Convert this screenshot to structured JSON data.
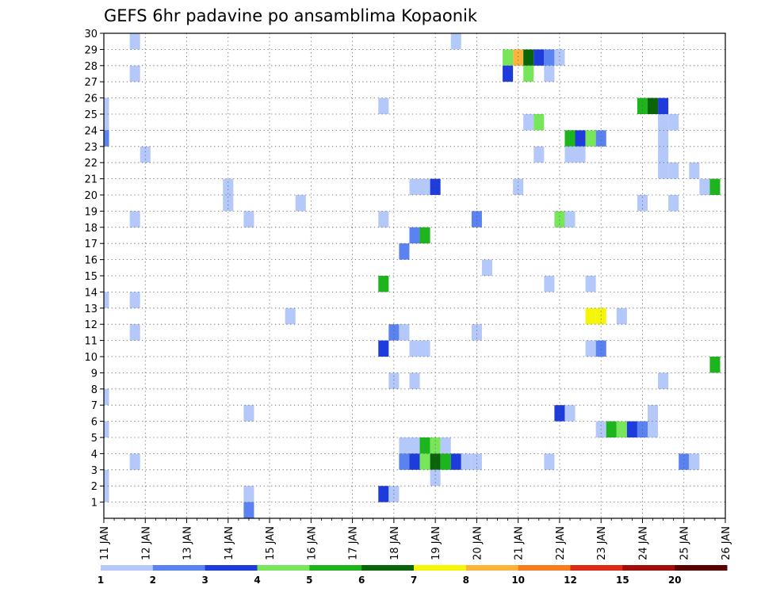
{
  "chart_data": {
    "type": "heatmap",
    "title": "GEFS 6hr padavine po ansamblima Kopaonik",
    "xlabel": "",
    "ylabel": "",
    "grid": true,
    "x_tick_labels": [
      "11 JAN",
      "12 JAN",
      "13 JAN",
      "14 JAN",
      "15 JAN",
      "16 JAN",
      "17 JAN",
      "18 JAN",
      "19 JAN",
      "20 JAN",
      "21 JAN",
      "22 JAN",
      "23 JAN",
      "24 JAN",
      "25 JAN",
      "26 JAN"
    ],
    "x_range_days": [
      11,
      26
    ],
    "y_tick_labels": [
      "1",
      "2",
      "3",
      "4",
      "5",
      "6",
      "7",
      "8",
      "9",
      "10",
      "11",
      "12",
      "13",
      "14",
      "15",
      "16",
      "17",
      "18",
      "19",
      "20",
      "21",
      "22",
      "23",
      "24",
      "25",
      "26",
      "27",
      "28",
      "29",
      "30"
    ],
    "y_range_members": [
      0,
      30
    ],
    "colorbar": {
      "labels": [
        "1",
        "2",
        "3",
        "4",
        "5",
        "6",
        "7",
        "8",
        "10",
        "12",
        "15",
        "20"
      ],
      "colors": [
        "#b4c8fa",
        "#5a82f0",
        "#1e3cdc",
        "#78e65a",
        "#1eb41e",
        "#0a640a",
        "#f5f50a",
        "#fab43c",
        "#f57d1e",
        "#dc2d14",
        "#a00f0a",
        "#5a0000"
      ]
    },
    "cell_value_unit": "color class index (0-11), 6-hour steps",
    "cells": [
      {
        "day": 11,
        "h": 0,
        "m": 25,
        "c": 0
      },
      {
        "day": 11,
        "h": 0,
        "m": 24,
        "c": 0
      },
      {
        "day": 11,
        "h": 0,
        "m": 23,
        "c": 1
      },
      {
        "day": 11,
        "h": 0,
        "m": 13,
        "c": 0
      },
      {
        "day": 11,
        "h": 0,
        "m": 7,
        "c": 0
      },
      {
        "day": 11,
        "h": 0,
        "m": 5,
        "c": 0
      },
      {
        "day": 11,
        "h": 0,
        "m": 2,
        "c": 0
      },
      {
        "day": 11,
        "h": 0,
        "m": 1,
        "c": 0
      },
      {
        "day": 11,
        "h": 18,
        "m": 29,
        "c": 0
      },
      {
        "day": 11,
        "h": 18,
        "m": 27,
        "c": 0
      },
      {
        "day": 11,
        "h": 18,
        "m": 18,
        "c": 0
      },
      {
        "day": 11,
        "h": 18,
        "m": 13,
        "c": 0
      },
      {
        "day": 11,
        "h": 18,
        "m": 11,
        "c": 0
      },
      {
        "day": 11,
        "h": 18,
        "m": 3,
        "c": 0
      },
      {
        "day": 12,
        "h": 0,
        "m": 22,
        "c": 0
      },
      {
        "day": 14,
        "h": 0,
        "m": 20,
        "c": 0
      },
      {
        "day": 14,
        "h": 0,
        "m": 19,
        "c": 0
      },
      {
        "day": 14,
        "h": 12,
        "m": 6,
        "c": 0
      },
      {
        "day": 14,
        "h": 12,
        "m": 1,
        "c": 0
      },
      {
        "day": 14,
        "h": 12,
        "m": 0,
        "c": 1
      },
      {
        "day": 14,
        "h": 12,
        "m": 18,
        "c": 0
      },
      {
        "day": 15,
        "h": 12,
        "m": 12,
        "c": 0
      },
      {
        "day": 15,
        "h": 18,
        "m": 19,
        "c": 0
      },
      {
        "day": 17,
        "h": 18,
        "m": 25,
        "c": 0
      },
      {
        "day": 17,
        "h": 18,
        "m": 18,
        "c": 0
      },
      {
        "day": 17,
        "h": 18,
        "m": 14,
        "c": 4
      },
      {
        "day": 17,
        "h": 18,
        "m": 10,
        "c": 2
      },
      {
        "day": 17,
        "h": 18,
        "m": 1,
        "c": 2
      },
      {
        "day": 18,
        "h": 0,
        "m": 11,
        "c": 1
      },
      {
        "day": 18,
        "h": 0,
        "m": 8,
        "c": 0
      },
      {
        "day": 18,
        "h": 0,
        "m": 1,
        "c": 0
      },
      {
        "day": 18,
        "h": 6,
        "m": 16,
        "c": 1
      },
      {
        "day": 18,
        "h": 6,
        "m": 11,
        "c": 0
      },
      {
        "day": 18,
        "h": 6,
        "m": 4,
        "c": 0
      },
      {
        "day": 18,
        "h": 6,
        "m": 3,
        "c": 1
      },
      {
        "day": 18,
        "h": 12,
        "m": 20,
        "c": 0
      },
      {
        "day": 18,
        "h": 12,
        "m": 17,
        "c": 1
      },
      {
        "day": 18,
        "h": 12,
        "m": 10,
        "c": 0
      },
      {
        "day": 18,
        "h": 12,
        "m": 8,
        "c": 0
      },
      {
        "day": 18,
        "h": 12,
        "m": 4,
        "c": 0
      },
      {
        "day": 18,
        "h": 12,
        "m": 3,
        "c": 2
      },
      {
        "day": 18,
        "h": 18,
        "m": 20,
        "c": 0
      },
      {
        "day": 18,
        "h": 18,
        "m": 17,
        "c": 4
      },
      {
        "day": 18,
        "h": 18,
        "m": 10,
        "c": 0
      },
      {
        "day": 18,
        "h": 18,
        "m": 4,
        "c": 4
      },
      {
        "day": 18,
        "h": 18,
        "m": 3,
        "c": 3
      },
      {
        "day": 19,
        "h": 0,
        "m": 20,
        "c": 2
      },
      {
        "day": 19,
        "h": 0,
        "m": 4,
        "c": 3
      },
      {
        "day": 19,
        "h": 0,
        "m": 3,
        "c": 5
      },
      {
        "day": 19,
        "h": 0,
        "m": 2,
        "c": 0
      },
      {
        "day": 19,
        "h": 6,
        "m": 4,
        "c": 0
      },
      {
        "day": 19,
        "h": 6,
        "m": 3,
        "c": 4
      },
      {
        "day": 19,
        "h": 12,
        "m": 29,
        "c": 0
      },
      {
        "day": 19,
        "h": 12,
        "m": 3,
        "c": 2
      },
      {
        "day": 19,
        "h": 18,
        "m": 3,
        "c": 0
      },
      {
        "day": 20,
        "h": 0,
        "m": 18,
        "c": 1
      },
      {
        "day": 20,
        "h": 0,
        "m": 11,
        "c": 0
      },
      {
        "day": 20,
        "h": 0,
        "m": 3,
        "c": 0
      },
      {
        "day": 20,
        "h": 6,
        "m": 15,
        "c": 0
      },
      {
        "day": 20,
        "h": 18,
        "m": 28,
        "c": 3
      },
      {
        "day": 20,
        "h": 18,
        "m": 27,
        "c": 2
      },
      {
        "day": 21,
        "h": 0,
        "m": 28,
        "c": 7
      },
      {
        "day": 21,
        "h": 0,
        "m": 20,
        "c": 0
      },
      {
        "day": 21,
        "h": 6,
        "m": 28,
        "c": 5
      },
      {
        "day": 21,
        "h": 6,
        "m": 27,
        "c": 3
      },
      {
        "day": 21,
        "h": 6,
        "m": 24,
        "c": 0
      },
      {
        "day": 21,
        "h": 12,
        "m": 28,
        "c": 2
      },
      {
        "day": 21,
        "h": 12,
        "m": 24,
        "c": 3
      },
      {
        "day": 21,
        "h": 12,
        "m": 22,
        "c": 0
      },
      {
        "day": 21,
        "h": 18,
        "m": 28,
        "c": 1
      },
      {
        "day": 21,
        "h": 18,
        "m": 27,
        "c": 0
      },
      {
        "day": 21,
        "h": 18,
        "m": 14,
        "c": 0
      },
      {
        "day": 21,
        "h": 18,
        "m": 3,
        "c": 0
      },
      {
        "day": 22,
        "h": 0,
        "m": 28,
        "c": 0
      },
      {
        "day": 22,
        "h": 0,
        "m": 18,
        "c": 3
      },
      {
        "day": 22,
        "h": 0,
        "m": 6,
        "c": 2
      },
      {
        "day": 22,
        "h": 6,
        "m": 23,
        "c": 4
      },
      {
        "day": 22,
        "h": 6,
        "m": 22,
        "c": 0
      },
      {
        "day": 22,
        "h": 6,
        "m": 18,
        "c": 0
      },
      {
        "day": 22,
        "h": 6,
        "m": 6,
        "c": 0
      },
      {
        "day": 22,
        "h": 12,
        "m": 23,
        "c": 2
      },
      {
        "day": 22,
        "h": 12,
        "m": 22,
        "c": 0
      },
      {
        "day": 22,
        "h": 18,
        "m": 23,
        "c": 3
      },
      {
        "day": 22,
        "h": 18,
        "m": 14,
        "c": 0
      },
      {
        "day": 22,
        "h": 18,
        "m": 12,
        "c": 6
      },
      {
        "day": 22,
        "h": 18,
        "m": 10,
        "c": 0
      },
      {
        "day": 23,
        "h": 0,
        "m": 23,
        "c": 1
      },
      {
        "day": 23,
        "h": 0,
        "m": 12,
        "c": 6
      },
      {
        "day": 23,
        "h": 0,
        "m": 10,
        "c": 1
      },
      {
        "day": 23,
        "h": 0,
        "m": 5,
        "c": 0
      },
      {
        "day": 23,
        "h": 6,
        "m": 5,
        "c": 4
      },
      {
        "day": 23,
        "h": 12,
        "m": 12,
        "c": 0
      },
      {
        "day": 23,
        "h": 12,
        "m": 5,
        "c": 3
      },
      {
        "day": 23,
        "h": 18,
        "m": 5,
        "c": 2
      },
      {
        "day": 24,
        "h": 0,
        "m": 25,
        "c": 4
      },
      {
        "day": 24,
        "h": 0,
        "m": 19,
        "c": 0
      },
      {
        "day": 24,
        "h": 0,
        "m": 5,
        "c": 1
      },
      {
        "day": 24,
        "h": 6,
        "m": 25,
        "c": 5
      },
      {
        "day": 24,
        "h": 6,
        "m": 6,
        "c": 0
      },
      {
        "day": 24,
        "h": 6,
        "m": 5,
        "c": 0
      },
      {
        "day": 24,
        "h": 12,
        "m": 25,
        "c": 2
      },
      {
        "day": 24,
        "h": 12,
        "m": 24,
        "c": 0
      },
      {
        "day": 24,
        "h": 12,
        "m": 23,
        "c": 0
      },
      {
        "day": 24,
        "h": 12,
        "m": 22,
        "c": 0
      },
      {
        "day": 24,
        "h": 12,
        "m": 21,
        "c": 0
      },
      {
        "day": 24,
        "h": 12,
        "m": 8,
        "c": 0
      },
      {
        "day": 24,
        "h": 18,
        "m": 24,
        "c": 0
      },
      {
        "day": 24,
        "h": 18,
        "m": 21,
        "c": 0
      },
      {
        "day": 24,
        "h": 18,
        "m": 19,
        "c": 0
      },
      {
        "day": 25,
        "h": 0,
        "m": 3,
        "c": 1
      },
      {
        "day": 25,
        "h": 6,
        "m": 21,
        "c": 0
      },
      {
        "day": 25,
        "h": 6,
        "m": 3,
        "c": 0
      },
      {
        "day": 25,
        "h": 12,
        "m": 20,
        "c": 0
      },
      {
        "day": 25,
        "h": 18,
        "m": 20,
        "c": 4
      },
      {
        "day": 25,
        "h": 18,
        "m": 9,
        "c": 4
      }
    ]
  }
}
